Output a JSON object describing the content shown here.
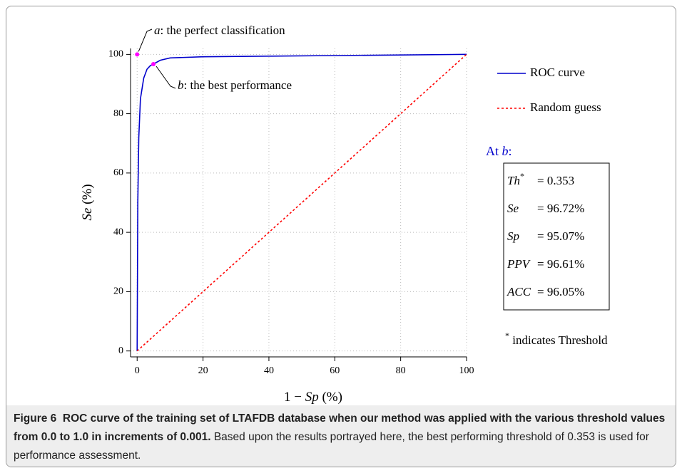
{
  "chart_data": {
    "type": "line",
    "xlabel": {
      "prefix": "1 − ",
      "var": "Sp",
      "suffix": " (%)"
    },
    "ylabel": {
      "var": "Se",
      "suffix": " (%)"
    },
    "xlim": [
      -2,
      100
    ],
    "ylim": [
      -2,
      102
    ],
    "xticks": [
      0,
      20,
      40,
      60,
      80,
      100
    ],
    "yticks": [
      0,
      20,
      40,
      60,
      80,
      100
    ],
    "grid": true,
    "series": [
      {
        "name": "ROC curve",
        "color": "#0000cc",
        "style": "solid",
        "x": [
          0,
          0.2,
          0.5,
          1,
          2,
          3,
          4,
          4.93,
          7,
          10,
          20,
          40,
          60,
          80,
          100
        ],
        "values": [
          0,
          50,
          72,
          85,
          92,
          95,
          96.2,
          96.72,
          98,
          98.8,
          99.2,
          99.4,
          99.6,
          99.8,
          100
        ]
      },
      {
        "name": "Random guess",
        "color": "#ff0000",
        "style": "dotted",
        "x": [
          0,
          100
        ],
        "values": [
          0,
          100
        ]
      }
    ],
    "points": [
      {
        "letter": "a",
        "text": ": the perfect classification",
        "x": 0,
        "y": 100,
        "color": "#ff00ff"
      },
      {
        "letter": "b",
        "text": ": the best performance",
        "x": 4.93,
        "y": 96.72,
        "color": "#ff00ff"
      }
    ],
    "stats_heading": {
      "prefix": "At ",
      "letter": "b",
      "suffix": ":"
    },
    "stats": [
      {
        "name": "Th",
        "sup": "*",
        "value": "= 0.353"
      },
      {
        "name": "Se",
        "sup": "",
        "value": "= 96.72%"
      },
      {
        "name": "Sp",
        "sup": "",
        "value": "= 95.07%"
      },
      {
        "name": "PPV",
        "sup": "",
        "value": "= 96.61%"
      },
      {
        "name": "ACC",
        "sup": "",
        "value": "= 96.05%"
      }
    ],
    "footnote": {
      "sup": "*",
      "text": " indicates Threshold"
    }
  },
  "caption": {
    "label": "Figure 6",
    "title": "ROC curve of the training set of LTAFDB database when our method was applied with the various threshold values from 0.0 to 1.0 in increments of 0.001.",
    "text": "Based upon the results portrayed here, the best performing threshold of 0.353 is used for performance assessment."
  }
}
